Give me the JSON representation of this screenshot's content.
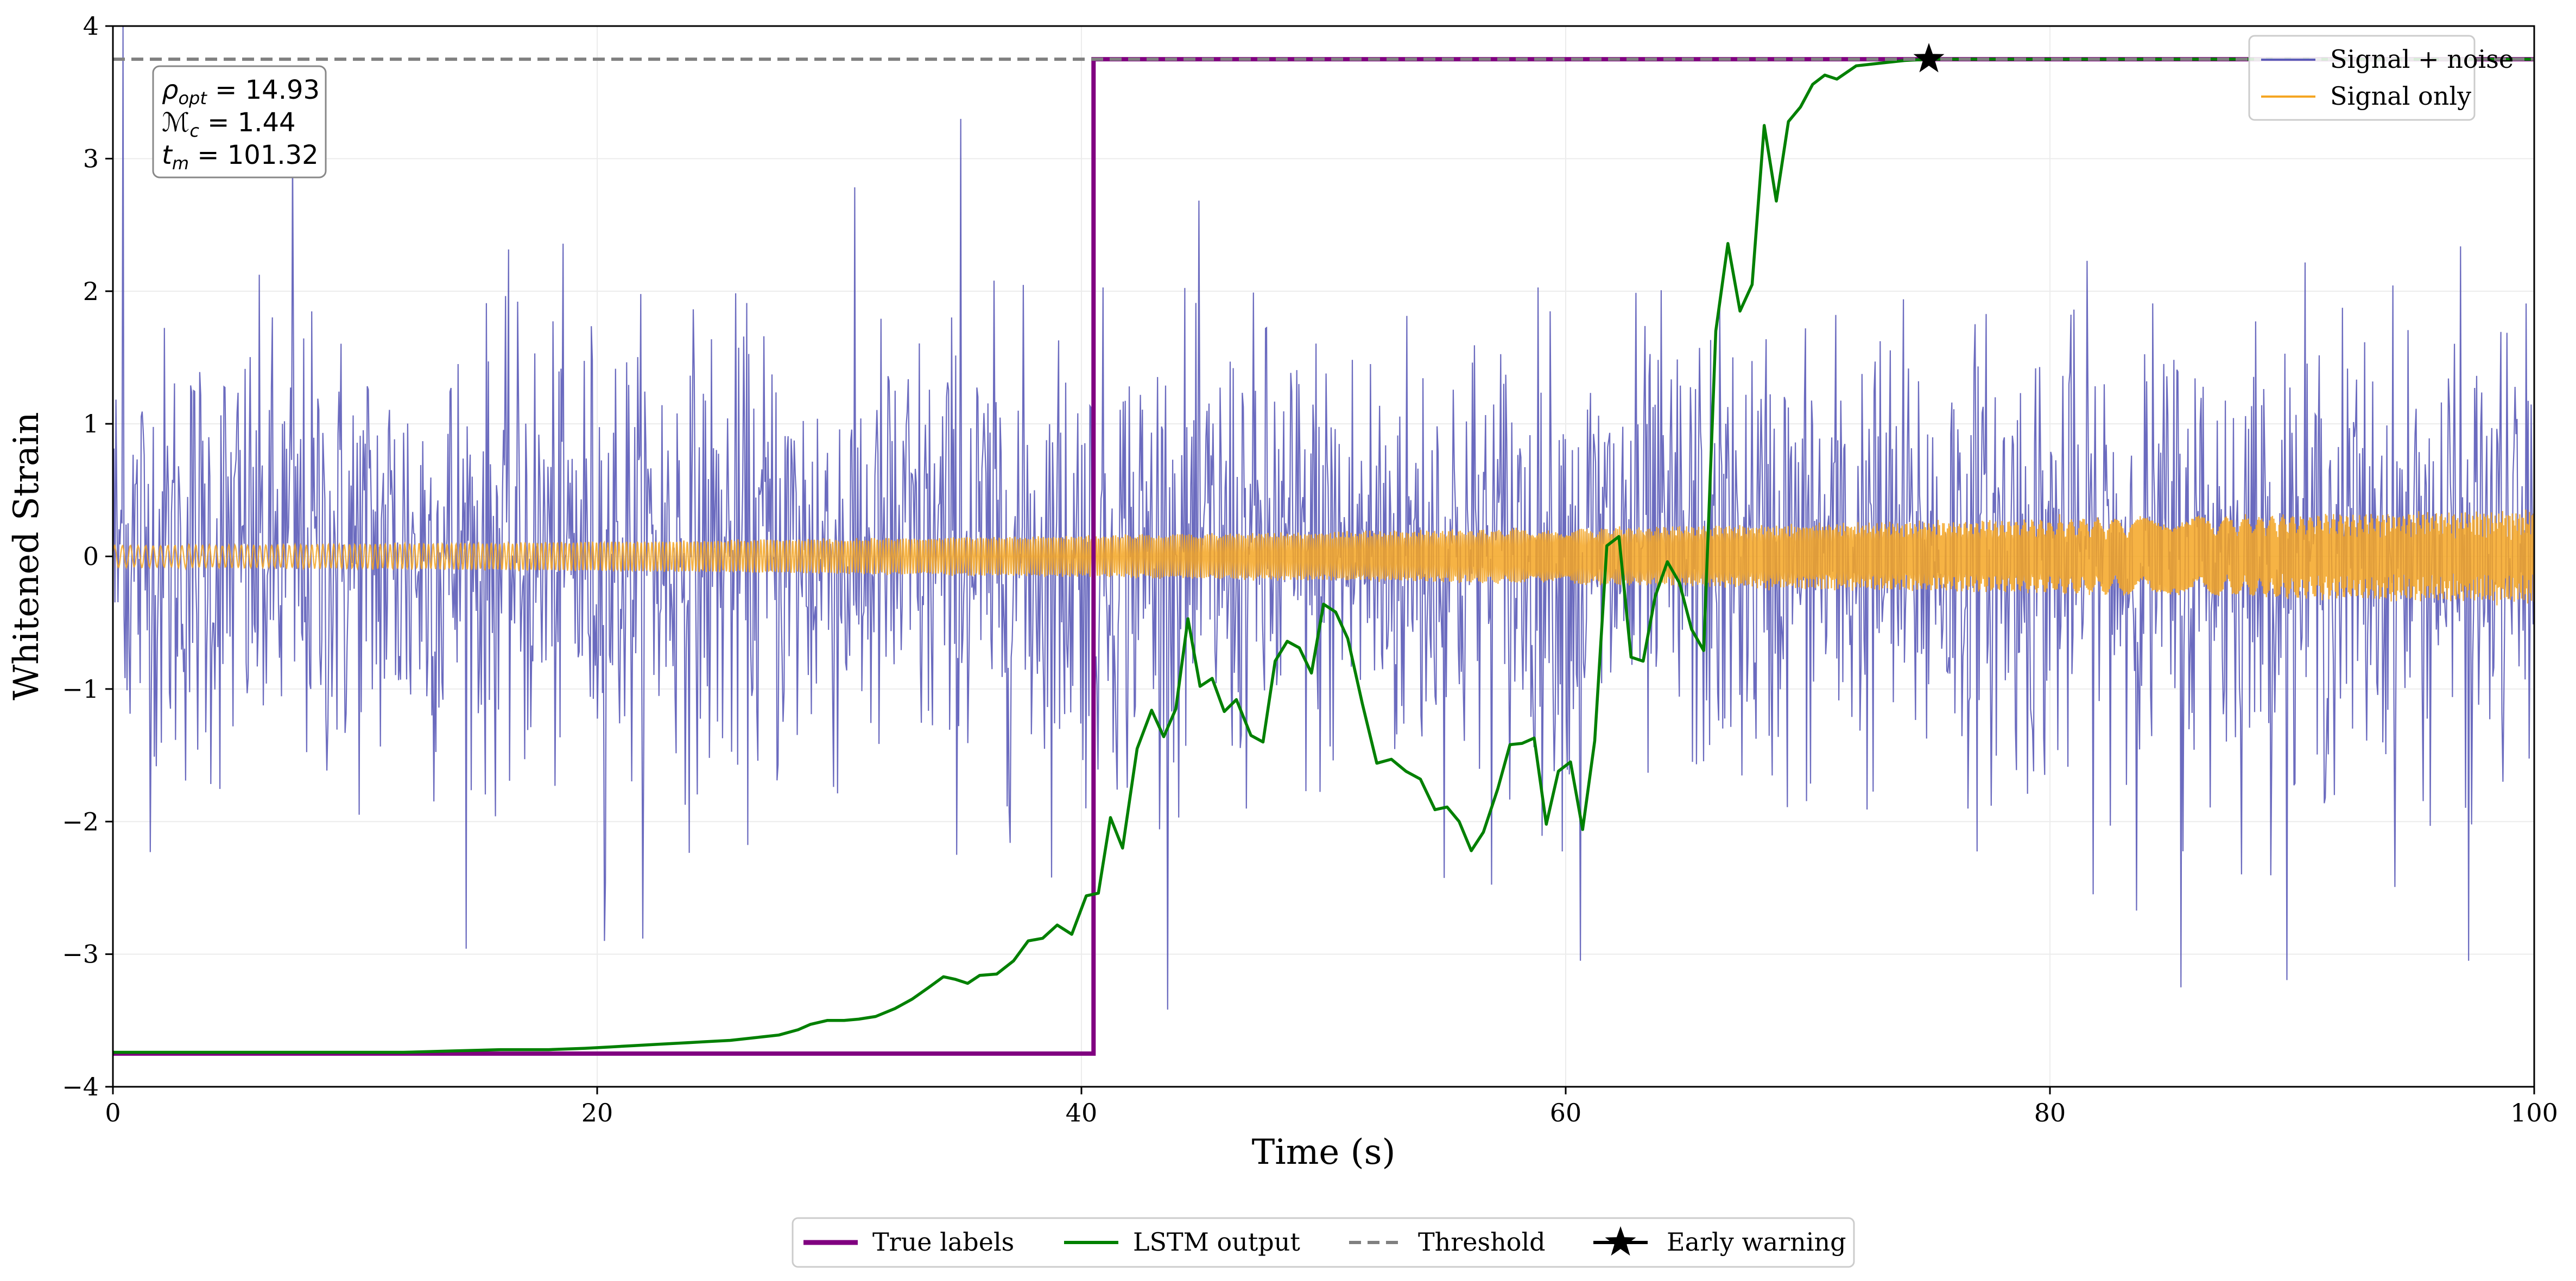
{
  "chart_data": {
    "type": "line",
    "title": "",
    "xlabel": "Time (s)",
    "ylabel": "Whitened Strain",
    "xlim": [
      0,
      100
    ],
    "ylim": [
      -4,
      4
    ],
    "xticks": [
      0,
      20,
      40,
      60,
      80,
      100
    ],
    "yticks": [
      -4,
      -3,
      -2,
      -1,
      0,
      1,
      2,
      3,
      4
    ],
    "xtick_labels": [
      "0",
      "20",
      "40",
      "60",
      "80",
      "100"
    ],
    "ytick_labels": [
      "−4",
      "−3",
      "−2",
      "−1",
      "0",
      "1",
      "2",
      "3",
      "4"
    ],
    "grid": true,
    "colors": {
      "signal_noise": "#5b5bb8",
      "signal_only": "#f5a623",
      "true_labels": "#800080",
      "lstm": "#008000",
      "threshold": "#808080",
      "marker": "#000000"
    },
    "series": [
      {
        "name": "Signal + noise",
        "kind": "noise",
        "std": 0.85,
        "x_range": [
          0,
          100
        ],
        "n_points": 2400,
        "spikes": [
          {
            "x": 0.4,
            "y": 4.0
          },
          {
            "x": 7.4,
            "y": 3.1
          },
          {
            "x": 20.3,
            "y": -2.9
          },
          {
            "x": 35.0,
            "y": 3.3
          },
          {
            "x": 85.4,
            "y": -3.25
          },
          {
            "x": 60.6,
            "y": -3.05
          },
          {
            "x": 97.3,
            "y": -3.05
          }
        ]
      },
      {
        "name": "Signal only",
        "kind": "chirp",
        "x_range": [
          0,
          100
        ],
        "amplitude_start": 0.08,
        "amplitude_end": 0.34
      },
      {
        "name": "True labels",
        "kind": "step",
        "x": [
          0,
          40.5,
          40.5,
          100
        ],
        "values": [
          -3.75,
          -3.75,
          3.75,
          3.75
        ]
      },
      {
        "name": "LSTM output",
        "kind": "line",
        "x": [
          0,
          5,
          10,
          12,
          14,
          16,
          18,
          19.5,
          20.5,
          21.5,
          22.5,
          23.5,
          24.5,
          25.5,
          26.5,
          27.5,
          28.3,
          28.8,
          29.5,
          30.2,
          30.8,
          31.5,
          32.3,
          33,
          33.7,
          34.3,
          34.8,
          35.3,
          35.8,
          36.5,
          37.2,
          37.8,
          38.4,
          39,
          39.6,
          40.2,
          40.7,
          41.2,
          41.7,
          42.3,
          42.9,
          43.4,
          43.9,
          44.4,
          44.9,
          45.4,
          45.9,
          46.4,
          47,
          47.5,
          48,
          48.5,
          49,
          49.5,
          50,
          50.5,
          51,
          51.6,
          52.2,
          52.8,
          53.4,
          54,
          54.6,
          55.1,
          55.6,
          56.1,
          56.6,
          57.2,
          57.7,
          58.2,
          58.7,
          59.2,
          59.7,
          60.2,
          60.7,
          61.2,
          61.7,
          62.2,
          62.7,
          63.2,
          63.7,
          64.2,
          64.7,
          65.2,
          65.7,
          66.2,
          66.7,
          67.2,
          67.7,
          68.2,
          68.7,
          69.2,
          69.7,
          70.2,
          70.7,
          71.2,
          72,
          73,
          74,
          75,
          100
        ],
        "values": [
          -3.74,
          -3.74,
          -3.74,
          -3.74,
          -3.73,
          -3.72,
          -3.72,
          -3.71,
          -3.7,
          -3.69,
          -3.68,
          -3.67,
          -3.66,
          -3.65,
          -3.63,
          -3.61,
          -3.57,
          -3.53,
          -3.5,
          -3.5,
          -3.49,
          -3.47,
          -3.41,
          -3.34,
          -3.25,
          -3.17,
          -3.19,
          -3.22,
          -3.16,
          -3.15,
          -3.05,
          -2.9,
          -2.88,
          -2.78,
          -2.85,
          -2.56,
          -2.54,
          -1.97,
          -2.2,
          -1.45,
          -1.16,
          -1.36,
          -1.15,
          -0.47,
          -0.98,
          -0.92,
          -1.17,
          -1.08,
          -1.35,
          -1.4,
          -0.79,
          -0.64,
          -0.69,
          -0.88,
          -0.36,
          -0.42,
          -0.62,
          -1.11,
          -1.56,
          -1.53,
          -1.62,
          -1.68,
          -1.91,
          -1.89,
          -2.0,
          -2.22,
          -2.08,
          -1.75,
          -1.42,
          -1.41,
          -1.37,
          -2.02,
          -1.62,
          -1.55,
          -2.06,
          -1.39,
          0.08,
          0.15,
          -0.76,
          -0.79,
          -0.3,
          -0.04,
          -0.2,
          -0.55,
          -0.71,
          1.7,
          2.36,
          1.85,
          2.05,
          3.25,
          2.68,
          3.28,
          3.39,
          3.56,
          3.63,
          3.6,
          3.7,
          3.72,
          3.74,
          3.75,
          3.75
        ]
      },
      {
        "name": "Threshold",
        "kind": "hline",
        "y": 3.75
      },
      {
        "name": "Early warning",
        "kind": "marker",
        "x": 75,
        "y": 3.75
      }
    ],
    "annotation": {
      "rho_opt": "14.93",
      "M_c": "1.44",
      "t_m": "101.32"
    },
    "legend_upper": [
      "Signal + noise",
      "Signal only"
    ],
    "legend_lower": [
      "True labels",
      "LSTM output",
      "Threshold",
      "Early warning"
    ],
    "legend_upper_position": "top-right",
    "legend_lower_position": "bottom-center"
  }
}
